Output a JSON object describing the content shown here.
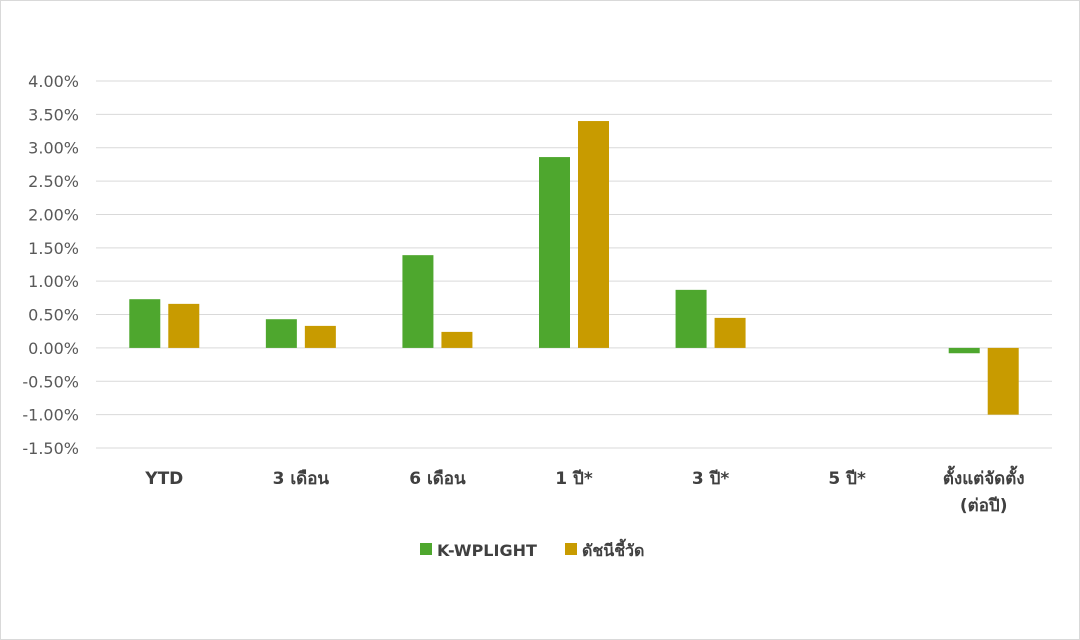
{
  "chart_data": {
    "type": "bar",
    "title": "",
    "xlabel": "",
    "ylabel": "",
    "ylim": [
      -1.5,
      4.0
    ],
    "ytick_step": 0.5,
    "ytick_labels": [
      "-1.50%",
      "-1.00%",
      "-0.50%",
      "0.00%",
      "0.50%",
      "1.00%",
      "1.50%",
      "2.00%",
      "2.50%",
      "3.00%",
      "3.50%",
      "4.00%"
    ],
    "grid": true,
    "legend_position": "bottom",
    "categories": [
      [
        "YTD"
      ],
      [
        "3 เดือน"
      ],
      [
        "6 เดือน"
      ],
      [
        "1 ปี*"
      ],
      [
        "3 ปี*"
      ],
      [
        "5 ปี*"
      ],
      [
        "ตั้งแต่จัดตั้ง",
        "(ต่อปี)"
      ]
    ],
    "series": [
      {
        "name": "K-WPLIGHT",
        "color": "#4ea72e",
        "values": [
          0.73,
          0.43,
          1.39,
          2.86,
          0.87,
          null,
          -0.08
        ]
      },
      {
        "name": "ดัชนีชี้วัด",
        "color": "#c89b00",
        "values": [
          0.66,
          0.33,
          0.24,
          3.4,
          0.45,
          null,
          -1.0
        ]
      }
    ]
  }
}
